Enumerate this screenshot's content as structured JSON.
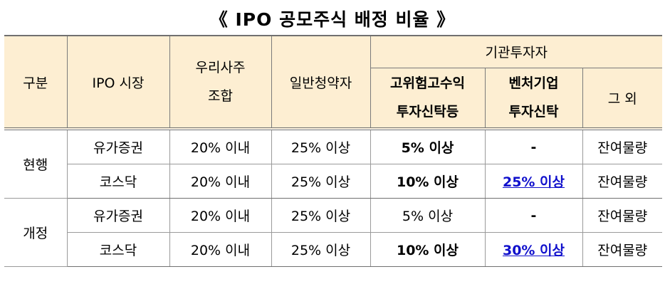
{
  "title": "《 IPO 공모주식 배정 비율 》",
  "headers": {
    "division": "구분",
    "market": "IPO 시장",
    "esop_line1": "우리사주",
    "esop_line2": "조합",
    "retail": "일반청약자",
    "institutional": "기관투자자",
    "high_yield_line1": "고위험고수익",
    "high_yield_line2": "투자신탁등",
    "venture_line1": "벤처기업",
    "venture_line2": "투자신탁",
    "others": "그 외"
  },
  "groups": [
    {
      "label": "현행",
      "rows": [
        {
          "market": "유가증권",
          "esop": "20% 이내",
          "retail": "25% 이상",
          "high_yield": "5% 이상",
          "venture": "-",
          "others": "잔여물량"
        },
        {
          "market": "코스닥",
          "esop": "20% 이내",
          "retail": "25% 이상",
          "high_yield": "10% 이상",
          "venture": "25% 이상",
          "others": "잔여물량"
        }
      ]
    },
    {
      "label": "개정",
      "rows": [
        {
          "market": "유가증권",
          "esop": "20% 이내",
          "retail": "25% 이상",
          "high_yield": "5% 이상",
          "venture": "-",
          "others": "잔여물량"
        },
        {
          "market": "코스닥",
          "esop": "20% 이내",
          "retail": "25% 이상",
          "high_yield": "10% 이상",
          "venture": "30% 이상",
          "others": "잔여물량"
        }
      ]
    }
  ],
  "colors": {
    "header_bg": "#fdeed2",
    "highlight_text": "#1010cc"
  }
}
